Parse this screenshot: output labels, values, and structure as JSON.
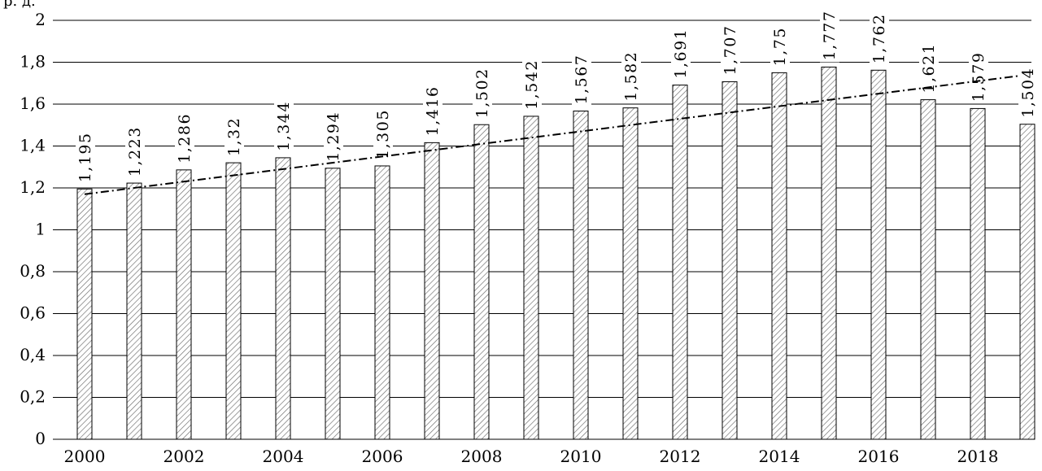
{
  "chart_data": {
    "type": "bar",
    "ylabel": "р. д.",
    "categories": [
      "2000",
      "2001",
      "2002",
      "2003",
      "2004",
      "2005",
      "2006",
      "2007",
      "2008",
      "2009",
      "2010",
      "2011",
      "2012",
      "2013",
      "2014",
      "2015",
      "2016",
      "2017",
      "2018",
      "2019"
    ],
    "values": [
      1.195,
      1.223,
      1.286,
      1.32,
      1.344,
      1.294,
      1.305,
      1.416,
      1.502,
      1.542,
      1.567,
      1.582,
      1.691,
      1.707,
      1.75,
      1.777,
      1.762,
      1.621,
      1.579,
      1.504
    ],
    "value_labels": [
      "1,195",
      "1,223",
      "1,286",
      "1,32",
      "1,344",
      "1,294",
      "1,305",
      "1,416",
      "1,502",
      "1,542",
      "1,567",
      "1,582",
      "1,691",
      "1,707",
      "1,75",
      "1,777",
      "1,762",
      "1,621",
      "1,579",
      "1,504"
    ],
    "x_tick_labels": [
      "2000",
      "2002",
      "2004",
      "2006",
      "2008",
      "2010",
      "2012",
      "2014",
      "2016",
      "2018"
    ],
    "y_tick_labels": [
      "0",
      "0,2",
      "0,4",
      "0,6",
      "0,8",
      "1",
      "1,2",
      "1,4",
      "1,6",
      "1,8",
      "2"
    ],
    "ylim": [
      0,
      2
    ],
    "grid": true,
    "trendline": {
      "style": "dash-dot",
      "start": 1.17,
      "end": 1.735
    },
    "bar_fill": "hatched",
    "colors": {
      "bar_stroke": "#000000",
      "hatch": "#555555",
      "grid": "#000000",
      "trend": "#000000"
    }
  }
}
